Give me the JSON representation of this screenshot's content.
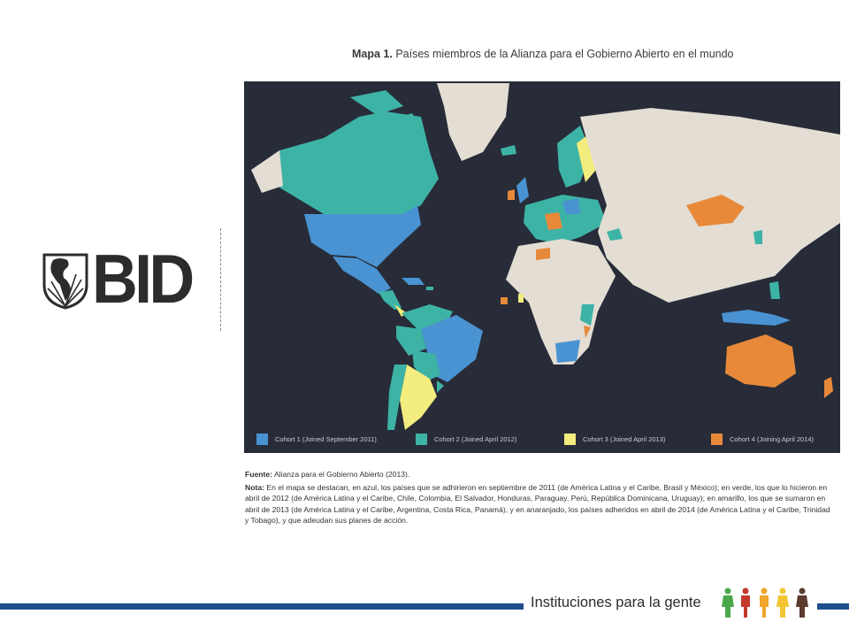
{
  "logo": {
    "text": "BID",
    "icon": "americas-globe-icon"
  },
  "map": {
    "title_bold": "Mapa 1.",
    "title_rest": " Países miembros de la Alianza para el Gobierno Abierto en el mundo",
    "legend": [
      {
        "label": "Cohort 1 (Joined September 2011)",
        "color": "#4a93d2"
      },
      {
        "label": "Cohort 2 (Joined April 2012)",
        "color": "#3db3a6"
      },
      {
        "label": "Cohort 3 (Joined April 2013)",
        "color": "#f3ec7e"
      },
      {
        "label": "Cohort 4 (Joining April 2014)",
        "color": "#e8893a"
      }
    ],
    "colors": {
      "ocean": "#272c38",
      "land": "#e3ddd3",
      "border": "#b8b2a8"
    }
  },
  "source": {
    "bold": "Fuente:",
    "text": " Alianza para el Gobierno Abierto (2013)."
  },
  "note": {
    "bold": "Nota:",
    "text": " En el mapa se destacan, en azul, los países que se adhirieron en septiembre de 2011 (de América Latina y el Caribe, Brasil y México); en verde, los que lo hicieron en abril de 2012 (de América Latina y el Caribe, Chile, Colombia, El Salvador, Honduras, Paraguay, Perú, República Dominicana, Uruguay); en amarillo, los que se sumaron en abril de 2013 (de América Latina y el Caribe, Argentina, Costa Rica, Panamá), y en anaranjado, los países adheridos en abril de 2014 (de América Latina y el Caribe, Trinidad y Tobago), y que adeudan sus planes de acción."
  },
  "footer": {
    "tagline": "Instituciones para la gente",
    "accent": "#1f4e8c",
    "people_colors": [
      "#4aa84a",
      "#c23a2b",
      "#f0a62a",
      "#f2c534",
      "#5a3b2e"
    ]
  }
}
